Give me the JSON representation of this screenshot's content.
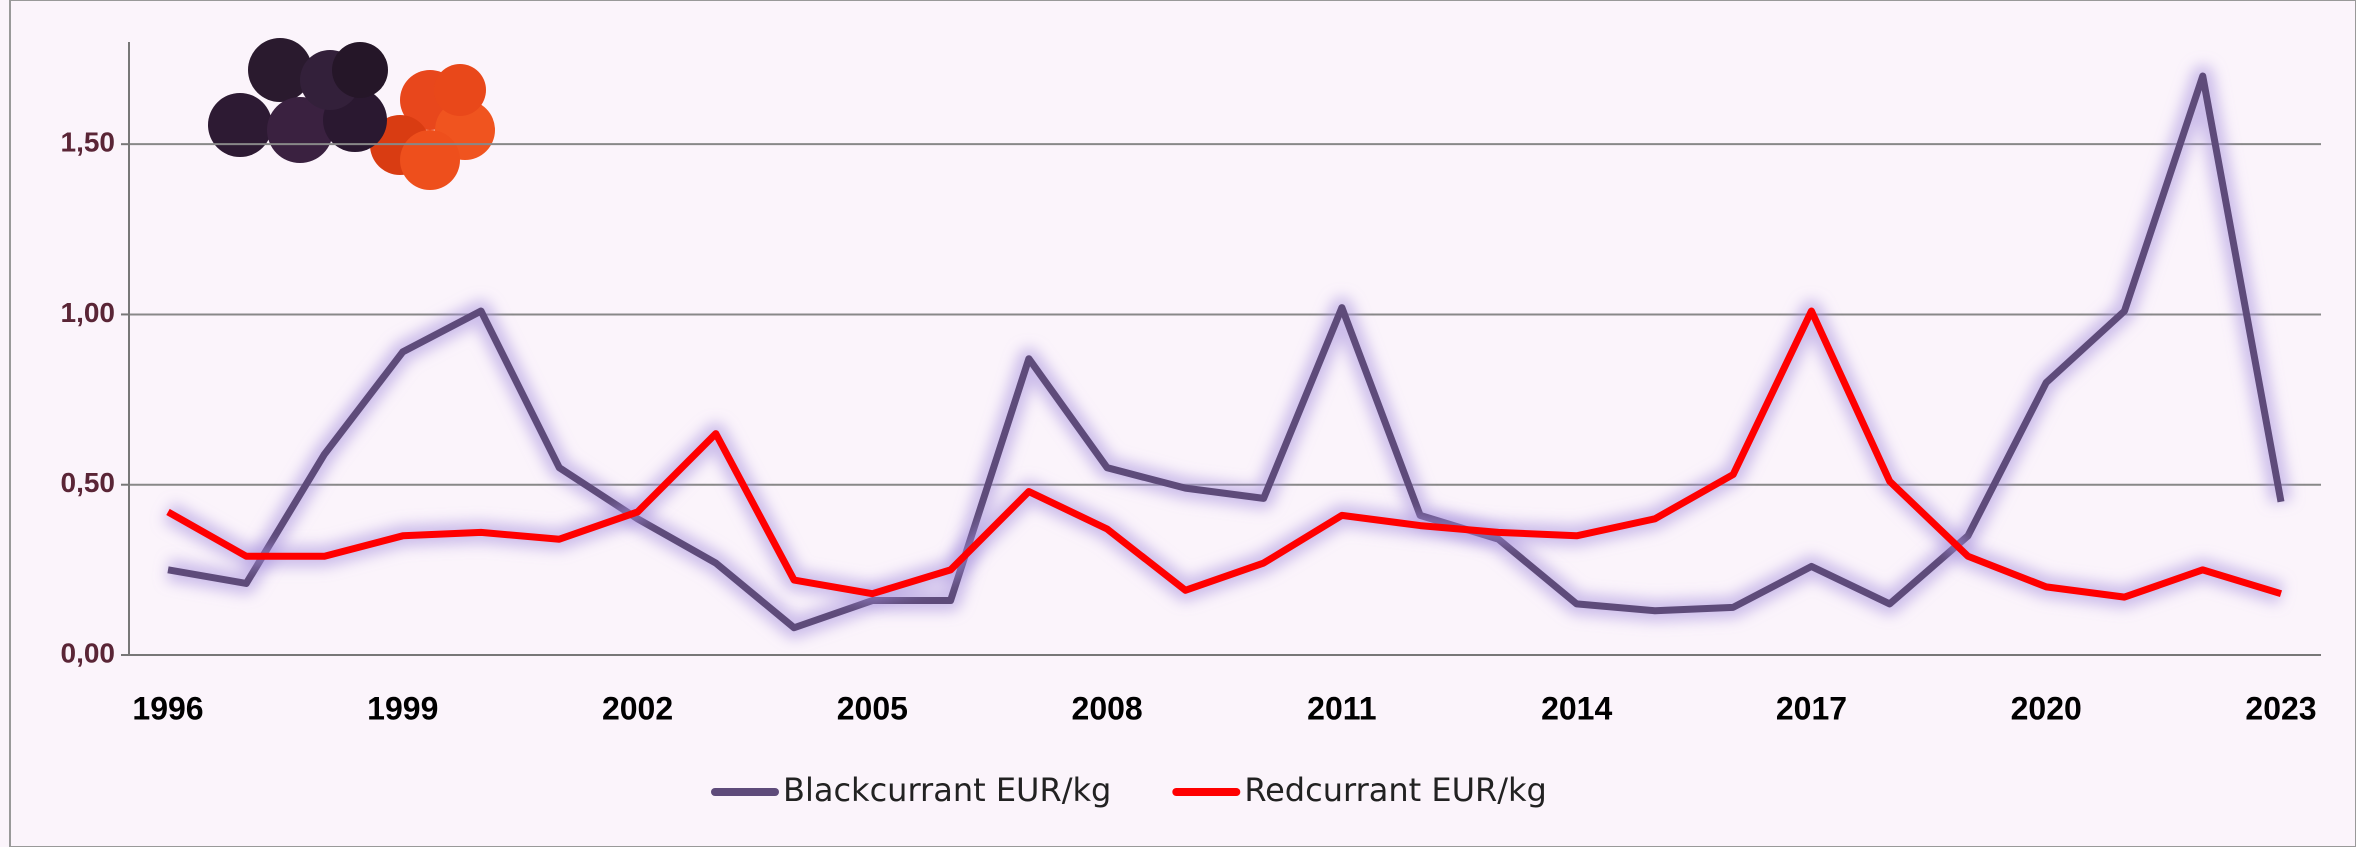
{
  "chart_data": {
    "type": "line",
    "categories": [
      "1996",
      null,
      null,
      "1999",
      null,
      null,
      "2002",
      null,
      null,
      "2005",
      null,
      null,
      "2008",
      null,
      null,
      "2011",
      null,
      null,
      "2014",
      null,
      null,
      "2017",
      null,
      null,
      "2020",
      null,
      null,
      "2023"
    ],
    "series": [
      {
        "name": "Blackcurrant EUR/kg",
        "color": "#5e4b7a",
        "values": [
          0.25,
          0.21,
          0.59,
          0.89,
          1.01,
          0.55,
          0.4,
          0.27,
          0.08,
          0.16,
          0.16,
          0.87,
          0.55,
          0.49,
          0.46,
          1.02,
          0.41,
          0.34,
          0.15,
          0.13,
          0.14,
          0.26,
          0.15,
          0.35,
          0.8,
          1.01,
          1.7,
          0.45
        ]
      },
      {
        "name": "Redcurrant EUR/kg",
        "color": "#ff0000",
        "values": [
          0.42,
          0.29,
          0.29,
          0.35,
          0.36,
          0.34,
          0.42,
          0.65,
          0.22,
          0.18,
          0.25,
          0.48,
          0.37,
          0.19,
          0.27,
          0.41,
          0.38,
          0.36,
          0.35,
          0.4,
          0.53,
          1.01,
          0.51,
          0.29,
          0.2,
          0.17,
          0.25,
          0.18
        ]
      }
    ],
    "ylim": [
      0,
      1.8
    ],
    "yticks": [
      {
        "value": 0,
        "label": "0,00"
      },
      {
        "value": 0.5,
        "label": "0,50"
      },
      {
        "value": 1,
        "label": "1,00"
      },
      {
        "value": 1.5,
        "label": "1,50"
      }
    ],
    "grid": true,
    "legend": "bottom"
  }
}
